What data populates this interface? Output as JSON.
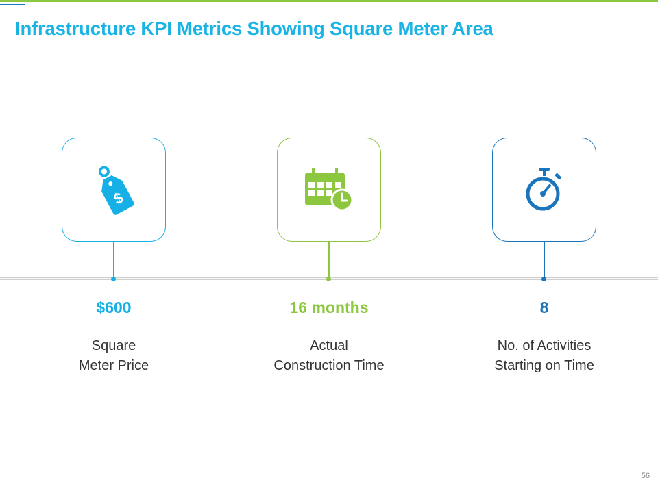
{
  "slide": {
    "title": "Infrastructure KPI Metrics Showing Square Meter Area",
    "page_number": "56",
    "colors": {
      "title": "#1ab3e6",
      "top_rule": "#8dc63f",
      "top_accent": "#1b75bc",
      "timeline": "#cfcfcf"
    }
  },
  "kpis": [
    {
      "value": "$600",
      "label_lines": [
        "Square",
        "Meter Price"
      ],
      "icon": "price-tag-icon",
      "color": "#17b0e6"
    },
    {
      "value": "16 months",
      "label_lines": [
        "Actual",
        "Construction Time"
      ],
      "icon": "calendar-clock-icon",
      "color": "#8dc63f"
    },
    {
      "value": "8",
      "label_lines": [
        "No. of Activities",
        "Starting on Time"
      ],
      "icon": "stopwatch-icon",
      "color": "#1b75bc"
    }
  ]
}
